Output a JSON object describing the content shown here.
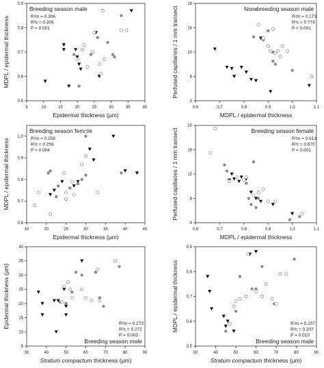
{
  "chart_data": [
    {
      "type": "scatter",
      "title": "Breeding season male",
      "xlabel": "Epidermal thickness (µm)",
      "ylabel": "MDPL / epidermal thickness",
      "xlim": [
        5,
        40
      ],
      "ylim": [
        0.5,
        0.9
      ],
      "xticks": [
        "5",
        "10",
        "15",
        "20",
        "25",
        "30",
        "35",
        "40"
      ],
      "yticks": [
        "0.5",
        "0.6",
        "0.7",
        "0.8",
        "0.9"
      ],
      "grid": false,
      "stats": [
        "R²m = 0.306",
        "R²c = 0.306",
        "P = 0.001"
      ],
      "stats_position": "top-left",
      "title_position": "top-left",
      "series": [
        {
          "marker": "triangle-down",
          "color": "#111111",
          "points": [
            [
              10.5,
              0.58
            ],
            [
              16,
              0.73
            ],
            [
              16,
              0.71
            ],
            [
              17.5,
              0.56
            ],
            [
              19.5,
              0.71
            ],
            [
              20,
              0.68
            ],
            [
              20.5,
              0.65
            ],
            [
              21,
              0.63
            ],
            [
              25.5,
              0.78
            ],
            [
              26.5,
              0.6
            ],
            [
              36,
              0.87
            ]
          ]
        },
        {
          "marker": "circle-gray",
          "color": "#8c8c8c",
          "points": [
            [
              19,
              0.69
            ],
            [
              20.5,
              0.56
            ],
            [
              24,
              0.69
            ],
            [
              26,
              0.76
            ],
            [
              29,
              0.74
            ],
            [
              30.5,
              0.69
            ],
            [
              31,
              0.68
            ],
            [
              33,
              0.85
            ]
          ]
        },
        {
          "marker": "circle-open",
          "color": "#999999",
          "points": [
            [
              20,
              0.67
            ],
            [
              21.5,
              0.71
            ],
            [
              22,
              0.73
            ],
            [
              23,
              0.64
            ],
            [
              24.5,
              0.7
            ],
            [
              25,
              0.78
            ],
            [
              26.5,
              0.65
            ],
            [
              27,
              0.61
            ],
            [
              27.5,
              0.87
            ],
            [
              28,
              0.67
            ],
            [
              33,
              0.79
            ],
            [
              34.5,
              0.79
            ]
          ]
        }
      ]
    },
    {
      "type": "scatter",
      "title": "Non-breeding season male",
      "xlabel": "MDPL / epidermal thickness",
      "ylabel": "Perfused capillaries / 1 mm transect",
      "xlim": [
        0.6,
        1.1
      ],
      "ylim": [
        2,
        18
      ],
      "xticks": [
        "0.6",
        "0.7",
        "0.8",
        "0.9",
        "1.0",
        "1.1"
      ],
      "yticks": [
        "2",
        "6",
        "10",
        "14",
        "18"
      ],
      "grid": false,
      "stats": [
        "R²m = 0.173",
        "R²c = 0.774",
        "P < 0.001"
      ],
      "stats_position": "top-right",
      "title_position": "top-right",
      "series": [
        {
          "marker": "triangle-down",
          "color": "#111111",
          "points": [
            [
              0.68,
              10.5
            ],
            [
              0.73,
              7.5
            ],
            [
              0.75,
              7.3
            ],
            [
              0.76,
              6.0
            ],
            [
              0.79,
              7.5
            ],
            [
              0.81,
              6.7
            ],
            [
              0.83,
              5.5
            ],
            [
              0.85,
              5.3
            ],
            [
              0.87,
              12.3
            ],
            [
              0.91,
              3.5
            ],
            [
              1.07,
              4.5
            ]
          ]
        },
        {
          "marker": "circle-gray",
          "color": "#8c8c8c",
          "points": [
            [
              0.84,
              12.5
            ],
            [
              0.85,
              17.0
            ],
            [
              0.88,
              12.0
            ],
            [
              0.9,
              13.5
            ],
            [
              0.92,
              10.0
            ],
            [
              0.92,
              8.5
            ],
            [
              0.93,
              8.0
            ],
            [
              1.0,
              7.0
            ]
          ]
        },
        {
          "marker": "circle-open",
          "color": "#999999",
          "points": [
            [
              0.86,
              14.5
            ],
            [
              0.88,
              12.3
            ],
            [
              0.9,
              11.0
            ],
            [
              0.91,
              10.2
            ],
            [
              0.92,
              13.8
            ],
            [
              0.93,
              9.8
            ],
            [
              0.94,
              10.2
            ],
            [
              0.95,
              9.3
            ],
            [
              0.96,
              11.0
            ],
            [
              0.98,
              10.2
            ],
            [
              1.08,
              6.0
            ]
          ]
        }
      ]
    },
    {
      "type": "scatter",
      "title": "Breeding season female",
      "xlabel": "Epidermal thickness (µm)",
      "ylabel": "MDPL / epidermal thickness",
      "xlim": [
        15,
        45
      ],
      "ylim": [
        0.6,
        1.05
      ],
      "xticks": [
        "15",
        "20",
        "25",
        "30",
        "35",
        "40",
        "45"
      ],
      "yticks": [
        "0.6",
        "0.7",
        "0.8",
        "0.9",
        "1.0"
      ],
      "grid": false,
      "stats": [
        "R²m = 0.258",
        "R²c = 0.258",
        "P = 0.004"
      ],
      "stats_position": "top-left",
      "title_position": "top-left",
      "series": [
        {
          "marker": "triangle-down",
          "color": "#111111",
          "points": [
            [
              21,
              0.73
            ],
            [
              22,
              0.75
            ],
            [
              24,
              0.79
            ],
            [
              27,
              0.77
            ],
            [
              28,
              0.79
            ],
            [
              31,
              0.94
            ],
            [
              32,
              0.89
            ],
            [
              37,
              1.0
            ],
            [
              40,
              0.84
            ],
            [
              43,
              0.83
            ]
          ]
        },
        {
          "marker": "circle-gray",
          "color": "#8c8c8c",
          "points": [
            [
              20.5,
              0.83
            ],
            [
              21,
              0.84
            ],
            [
              22.5,
              0.72
            ],
            [
              23,
              0.77
            ],
            [
              26,
              0.76
            ],
            [
              28,
              0.78
            ],
            [
              29,
              0.8
            ],
            [
              30,
              0.82
            ],
            [
              30,
              1.0
            ],
            [
              39,
              0.83
            ]
          ]
        },
        {
          "marker": "circle-open",
          "color": "#999999",
          "points": [
            [
              17,
              0.68
            ],
            [
              18,
              0.74
            ],
            [
              21,
              0.64
            ],
            [
              24.5,
              0.83
            ],
            [
              25,
              0.71
            ],
            [
              25,
              0.74
            ],
            [
              26.5,
              0.79
            ],
            [
              27,
              0.73
            ],
            [
              29,
              0.87
            ],
            [
              30,
              1.02
            ],
            [
              30,
              0.91
            ],
            [
              33,
              0.74
            ]
          ]
        }
      ]
    },
    {
      "type": "scatter",
      "title": "Breeding season female",
      "xlabel": "MDPL / epidermal thickness",
      "ylabel": "Perfused capillaries / 1 mm transect",
      "xlim": [
        0.6,
        1.1
      ],
      "ylim": [
        4,
        20
      ],
      "xticks": [
        "0.6",
        "0.7",
        "0.8",
        "0.9",
        "1.0",
        "1.1"
      ],
      "yticks": [
        "4",
        "8",
        "12",
        "16",
        "20"
      ],
      "grid": false,
      "stats": [
        "R²m = 0.613",
        "R²c = 0.670",
        "P < 0.001"
      ],
      "stats_position": "top-right",
      "title_position": "top-right",
      "series": [
        {
          "marker": "triangle-down",
          "color": "#111111",
          "points": [
            [
              0.74,
              11.0
            ],
            [
              0.75,
              12.0
            ],
            [
              0.76,
              11.2
            ],
            [
              0.78,
              10.8
            ],
            [
              0.79,
              11.5
            ],
            [
              0.81,
              11.2
            ],
            [
              0.83,
              9.0
            ],
            [
              0.85,
              8.0
            ],
            [
              0.87,
              7.5
            ],
            [
              0.92,
              7.0
            ],
            [
              1.0,
              5.5
            ]
          ]
        },
        {
          "marker": "circle-gray",
          "color": "#8c8c8c",
          "points": [
            [
              0.72,
              13.5
            ],
            [
              0.73,
              12.5
            ],
            [
              0.81,
              10.5
            ],
            [
              0.82,
              8.0
            ],
            [
              0.83,
              7.0
            ],
            [
              0.84,
              14.0
            ],
            [
              0.85,
              6.5
            ],
            [
              0.86,
              8.0
            ],
            [
              0.99,
              4.5
            ],
            [
              1.03,
              5.0
            ]
          ]
        },
        {
          "marker": "circle-open",
          "color": "#999999",
          "points": [
            [
              0.66,
              15.5
            ],
            [
              0.68,
              19.5
            ],
            [
              0.74,
              10.8
            ],
            [
              0.77,
              11.5
            ],
            [
              0.8,
              11.0
            ],
            [
              0.81,
              11.5
            ],
            [
              0.84,
              8.5
            ],
            [
              0.86,
              9.0
            ],
            [
              0.88,
              9.5
            ],
            [
              0.9,
              7.5
            ],
            [
              0.93,
              7.5
            ],
            [
              1.04,
              5.5
            ]
          ]
        }
      ]
    },
    {
      "type": "scatter",
      "title": "Breeding season male",
      "xlabel_italic": "Stratum compactum",
      "xlabel": " thickness (µm)",
      "ylabel": "Epidermal thickness (µm)",
      "xlim": [
        30,
        90
      ],
      "ylim": [
        5,
        40
      ],
      "xticks": [
        "30",
        "40",
        "50",
        "60",
        "70",
        "80",
        "90"
      ],
      "yticks": [
        "5",
        "10",
        "15",
        "20",
        "25",
        "30",
        "35",
        "40"
      ],
      "grid": false,
      "stats": [
        "R²m = 0.272",
        "R²c = 0.272",
        "P = 0.003"
      ],
      "stats_position": "bottom-right",
      "title_position": "bottom-right",
      "series": [
        {
          "marker": "triangle-down",
          "color": "#111111",
          "points": [
            [
              36,
              24
            ],
            [
              38,
              20
            ],
            [
              38,
              16
            ],
            [
              44,
              21
            ],
            [
              45,
              10
            ],
            [
              46,
              21
            ],
            [
              49,
              25
            ],
            [
              50,
              19
            ],
            [
              50,
              16
            ],
            [
              58,
              35
            ]
          ]
        },
        {
          "marker": "circle-gray",
          "color": "#8c8c8c",
          "points": [
            [
              47,
              20.5
            ],
            [
              50,
              20
            ],
            [
              53,
              24
            ],
            [
              55,
              31
            ],
            [
              58,
              30
            ],
            [
              65,
              31
            ],
            [
              67,
              22
            ],
            [
              69,
              19
            ],
            [
              77,
              33
            ]
          ]
        },
        {
          "marker": "circle-open",
          "color": "#999999",
          "points": [
            [
              48,
              20.5
            ],
            [
              49,
              26
            ],
            [
              51,
              27.5
            ],
            [
              52,
              25
            ],
            [
              53,
              22
            ],
            [
              58,
              25
            ],
            [
              60,
              22
            ],
            [
              63,
              21
            ],
            [
              66,
              32
            ],
            [
              67,
              21
            ],
            [
              75,
              35
            ]
          ]
        }
      ]
    },
    {
      "type": "scatter",
      "title": "Breeding season male",
      "xlabel_italic": "Stratum compactum",
      "xlabel": " thickness (µm)",
      "ylabel": "MDPL / epidermal thickness",
      "xlim": [
        30,
        90
      ],
      "ylim": [
        0.5,
        0.9
      ],
      "xticks": [
        "30",
        "40",
        "50",
        "60",
        "70",
        "80",
        "90"
      ],
      "yticks": [
        "0.5",
        "0.6",
        "0.7",
        "0.8",
        "0.9"
      ],
      "grid": false,
      "stats": [
        "R²m = 0.207",
        "R²c = 0.207",
        "P = 0.010"
      ],
      "stats_position": "bottom-right",
      "title_position": "bottom-right",
      "series": [
        {
          "marker": "triangle-down",
          "color": "#111111",
          "points": [
            [
              36,
              0.78
            ],
            [
              37,
              0.72
            ],
            [
              38,
              0.65
            ],
            [
              44,
              0.62
            ],
            [
              45,
              0.58
            ],
            [
              46,
              0.6
            ],
            [
              49,
              0.56
            ],
            [
              57,
              0.87
            ],
            [
              60,
              0.88
            ]
          ]
        },
        {
          "marker": "circle-gray",
          "color": "#8c8c8c",
          "points": [
            [
              45,
              0.56
            ],
            [
              50,
              0.64
            ],
            [
              52,
              0.78
            ],
            [
              58,
              0.73
            ],
            [
              60,
              0.73
            ],
            [
              63,
              0.82
            ],
            [
              69,
              0.67
            ],
            [
              79,
              0.85
            ]
          ]
        },
        {
          "marker": "circle-open",
          "color": "#999999",
          "points": [
            [
              47,
              0.59
            ],
            [
              49,
              0.66
            ],
            [
              50,
              0.68
            ],
            [
              52,
              0.69
            ],
            [
              55,
              0.7
            ],
            [
              56,
              0.87
            ],
            [
              60,
              0.72
            ],
            [
              63,
              0.7
            ],
            [
              65,
              0.75
            ],
            [
              68,
              0.69
            ],
            [
              70,
              0.67
            ],
            [
              72,
              0.79
            ],
            [
              75,
              0.79
            ]
          ]
        }
      ]
    }
  ]
}
